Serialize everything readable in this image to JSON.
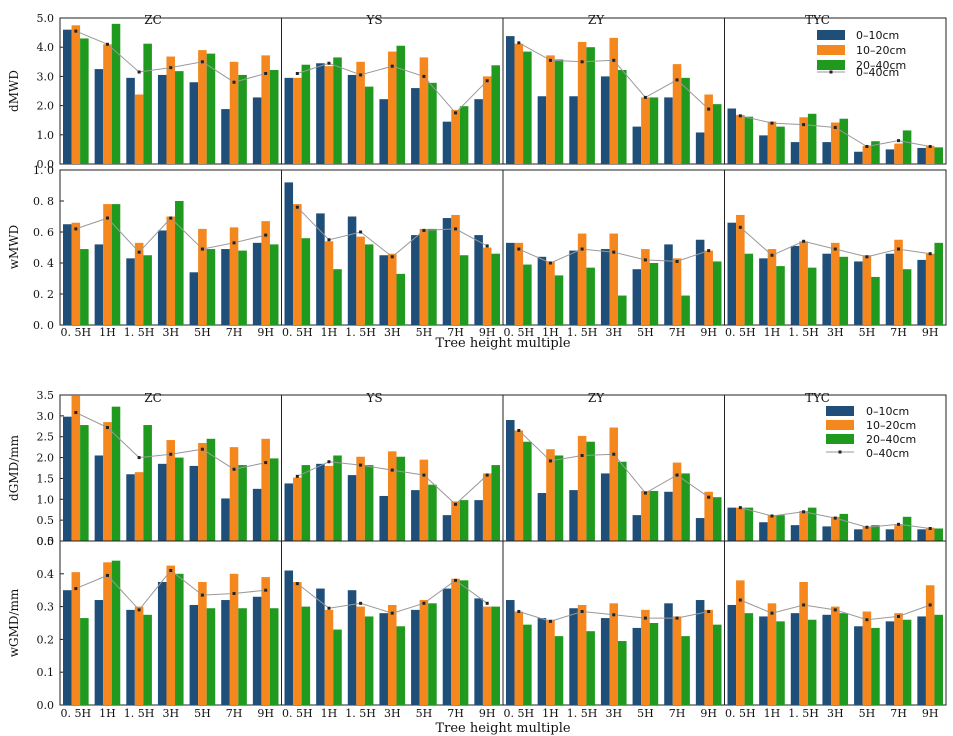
{
  "colors": {
    "s1": "#1f4e79",
    "s2": "#f5871f",
    "s3": "#1f9a1f",
    "line": "#999999",
    "marker": "#222222"
  },
  "legend_labels": [
    "0–10cm",
    "10–20cm",
    "20–40cm",
    "0–40cm"
  ],
  "categories": [
    "0. 5H",
    "1H",
    "1. 5H",
    "3H",
    "5H",
    "7H",
    "9H"
  ],
  "xlabel": "Tree height multiple",
  "panel_titles": [
    "ZC",
    "YS",
    "ZY",
    "TYC"
  ],
  "chart_data": [
    {
      "type": "bar",
      "ylabel": "dMWD",
      "ylim": [
        0,
        5
      ],
      "yticks": [
        "0.0",
        "1.0",
        "2.0",
        "3.0",
        "4.0",
        "5.0"
      ],
      "panels": [
        {
          "title": "ZC",
          "series": [
            [
              4.6,
              3.25,
              2.95,
              3.05,
              2.8,
              1.88,
              2.28
            ],
            [
              4.75,
              4.1,
              2.38,
              3.68,
              3.9,
              3.5,
              3.72
            ],
            [
              4.3,
              4.8,
              4.12,
              3.18,
              3.78,
              3.05,
              3.22
            ]
          ],
          "mean": [
            4.55,
            4.1,
            3.15,
            3.3,
            3.5,
            2.8,
            3.1
          ]
        },
        {
          "title": "YS",
          "series": [
            [
              2.95,
              3.45,
              3.05,
              2.22,
              2.6,
              1.45,
              2.22
            ],
            [
              2.95,
              3.35,
              3.5,
              3.85,
              3.65,
              1.85,
              3.0
            ],
            [
              3.4,
              3.65,
              2.65,
              4.05,
              2.78,
              1.98,
              3.38
            ]
          ],
          "mean": [
            3.1,
            3.45,
            3.05,
            3.35,
            3.0,
            1.75,
            2.85
          ]
        },
        {
          "title": "ZY",
          "series": [
            [
              4.38,
              2.32,
              2.32,
              3.0,
              1.28,
              2.28,
              1.08
            ],
            [
              4.12,
              3.72,
              4.18,
              4.32,
              2.28,
              3.42,
              2.38
            ],
            [
              3.85,
              3.58,
              4.0,
              3.22,
              2.28,
              2.95,
              2.05
            ]
          ],
          "mean": [
            4.15,
            3.55,
            3.5,
            3.55,
            2.28,
            2.88,
            1.88
          ]
        },
        {
          "title": "TYC",
          "series": [
            [
              1.9,
              0.98,
              0.75,
              0.75,
              0.42,
              0.5,
              0.55
            ],
            [
              1.68,
              1.45,
              1.6,
              1.42,
              0.62,
              0.7,
              0.62
            ],
            [
              1.62,
              1.28,
              1.72,
              1.55,
              0.78,
              1.15,
              0.57
            ]
          ],
          "mean": [
            1.65,
            1.4,
            1.35,
            1.25,
            0.6,
            0.8,
            0.6
          ]
        }
      ]
    },
    {
      "type": "bar",
      "ylabel": "wMWD",
      "ylim": [
        0,
        1
      ],
      "yticks": [
        "0. 0",
        "0. 2",
        "0. 4",
        "0. 6",
        "0. 8",
        "1. 0"
      ],
      "panels": [
        {
          "title": "ZC",
          "series": [
            [
              0.65,
              0.52,
              0.43,
              0.61,
              0.34,
              0.49,
              0.53
            ],
            [
              0.66,
              0.78,
              0.53,
              0.7,
              0.62,
              0.63,
              0.67
            ],
            [
              0.49,
              0.78,
              0.45,
              0.8,
              0.49,
              0.48,
              0.52
            ]
          ],
          "mean": [
            0.62,
            0.69,
            0.47,
            0.69,
            0.49,
            0.53,
            0.58
          ]
        },
        {
          "title": "YS",
          "series": [
            [
              0.92,
              0.72,
              0.7,
              0.45,
              0.58,
              0.69,
              0.58
            ],
            [
              0.78,
              0.54,
              0.57,
              0.46,
              0.62,
              0.71,
              0.5
            ],
            [
              0.56,
              0.36,
              0.52,
              0.33,
              0.62,
              0.45,
              0.46
            ]
          ],
          "mean": [
            0.76,
            0.55,
            0.6,
            0.44,
            0.61,
            0.62,
            0.51
          ]
        },
        {
          "title": "ZY",
          "series": [
            [
              0.53,
              0.44,
              0.48,
              0.49,
              0.36,
              0.52,
              0.55
            ],
            [
              0.53,
              0.41,
              0.59,
              0.59,
              0.49,
              0.43,
              0.48
            ],
            [
              0.39,
              0.32,
              0.37,
              0.19,
              0.4,
              0.19,
              0.41
            ]
          ],
          "mean": [
            0.49,
            0.4,
            0.49,
            0.47,
            0.42,
            0.41,
            0.48
          ]
        },
        {
          "title": "TYC",
          "series": [
            [
              0.66,
              0.43,
              0.51,
              0.46,
              0.41,
              0.46,
              0.42
            ],
            [
              0.71,
              0.49,
              0.54,
              0.53,
              0.45,
              0.55,
              0.46
            ],
            [
              0.46,
              0.38,
              0.37,
              0.44,
              0.31,
              0.36,
              0.53
            ]
          ],
          "mean": [
            0.63,
            0.45,
            0.54,
            0.49,
            0.44,
            0.49,
            0.46
          ]
        }
      ]
    },
    {
      "type": "bar",
      "ylabel": "dGMD/mm",
      "ylim": [
        0,
        3.5
      ],
      "yticks": [
        "0.0",
        "0.5",
        "1.0",
        "1.5",
        "2.0",
        "2.5",
        "3.0",
        "3.5"
      ],
      "panels": [
        {
          "title": "ZC",
          "series": [
            [
              2.98,
              2.05,
              1.6,
              1.85,
              1.8,
              1.02,
              1.25
            ],
            [
              3.48,
              2.85,
              1.65,
              2.42,
              2.35,
              2.25,
              2.45
            ],
            [
              2.78,
              3.22,
              2.78,
              2.0,
              2.45,
              1.82,
              1.98
            ]
          ],
          "mean": [
            3.08,
            2.72,
            2.0,
            2.08,
            2.2,
            1.72,
            1.88
          ]
        },
        {
          "title": "YS",
          "series": [
            [
              1.38,
              1.85,
              1.58,
              1.08,
              1.22,
              0.62,
              0.98
            ],
            [
              1.52,
              1.8,
              2.02,
              2.15,
              1.95,
              0.95,
              1.62
            ],
            [
              1.82,
              2.05,
              1.82,
              2.02,
              1.35,
              0.98,
              1.82
            ]
          ],
          "mean": [
            1.55,
            1.9,
            1.82,
            1.7,
            1.58,
            0.88,
            1.58
          ]
        },
        {
          "title": "ZY",
          "series": [
            [
              2.9,
              1.15,
              1.22,
              1.62,
              0.62,
              1.18,
              0.55
            ],
            [
              2.65,
              2.2,
              2.52,
              2.72,
              1.2,
              1.88,
              1.18
            ],
            [
              2.38,
              2.05,
              2.38,
              1.9,
              1.2,
              1.62,
              1.05
            ]
          ],
          "mean": [
            2.65,
            1.92,
            2.05,
            2.08,
            1.15,
            1.58,
            1.05
          ]
        },
        {
          "title": "TYC",
          "series": [
            [
              0.8,
              0.45,
              0.38,
              0.35,
              0.28,
              0.28,
              0.28
            ],
            [
              0.8,
              0.62,
              0.72,
              0.58,
              0.35,
              0.38,
              0.32
            ],
            [
              0.8,
              0.62,
              0.8,
              0.65,
              0.38,
              0.58,
              0.3
            ]
          ],
          "mean": [
            0.8,
            0.6,
            0.7,
            0.55,
            0.33,
            0.4,
            0.3
          ]
        }
      ]
    },
    {
      "type": "bar",
      "ylabel": "wGMD/mm",
      "ylim": [
        0,
        0.5
      ],
      "yticks": [
        "0.0",
        "0.1",
        "0.2",
        "0.3",
        "0.4",
        "0.5"
      ],
      "panels": [
        {
          "title": "ZC",
          "series": [
            [
              0.35,
              0.32,
              0.29,
              0.375,
              0.305,
              0.32,
              0.33
            ],
            [
              0.405,
              0.435,
              0.3,
              0.425,
              0.375,
              0.4,
              0.39
            ],
            [
              0.265,
              0.44,
              0.275,
              0.4,
              0.295,
              0.295,
              0.295
            ]
          ],
          "mean": [
            0.355,
            0.395,
            0.29,
            0.41,
            0.335,
            0.34,
            0.35
          ]
        },
        {
          "title": "YS",
          "series": [
            [
              0.41,
              0.355,
              0.35,
              0.28,
              0.29,
              0.355,
              0.325
            ],
            [
              0.375,
              0.29,
              0.3,
              0.305,
              0.32,
              0.385,
              0.3
            ],
            [
              0.3,
              0.23,
              0.27,
              0.24,
              0.31,
              0.38,
              0.3
            ]
          ],
          "mean": [
            0.37,
            0.295,
            0.31,
            0.28,
            0.31,
            0.38,
            0.31
          ]
        },
        {
          "title": "ZY",
          "series": [
            [
              0.32,
              0.265,
              0.295,
              0.265,
              0.235,
              0.31,
              0.32
            ],
            [
              0.285,
              0.26,
              0.305,
              0.31,
              0.29,
              0.27,
              0.29
            ],
            [
              0.245,
              0.21,
              0.225,
              0.195,
              0.25,
              0.21,
              0.245
            ]
          ],
          "mean": [
            0.285,
            0.255,
            0.285,
            0.275,
            0.265,
            0.265,
            0.285
          ]
        },
        {
          "title": "TYC",
          "series": [
            [
              0.305,
              0.27,
              0.28,
              0.275,
              0.24,
              0.255,
              0.27
            ],
            [
              0.38,
              0.31,
              0.375,
              0.3,
              0.285,
              0.28,
              0.365
            ],
            [
              0.28,
              0.255,
              0.26,
              0.28,
              0.235,
              0.26,
              0.275
            ]
          ],
          "mean": [
            0.32,
            0.28,
            0.305,
            0.29,
            0.26,
            0.27,
            0.305
          ]
        }
      ]
    }
  ]
}
